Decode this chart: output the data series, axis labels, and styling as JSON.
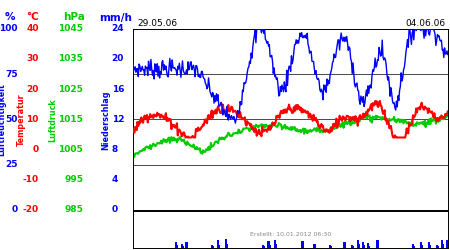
{
  "title_left": "29.05.06",
  "title_right": "04.06.06",
  "footer": "Erstellt: 10.01.2012 06:30",
  "ylabel_blue": "Luftfeuchtigkeit",
  "ylabel_red": "Temperatur",
  "ylabel_green": "Luftdruck",
  "ylabel_navy": "Niederschlag",
  "unit_blue": "%",
  "unit_red": "°C",
  "unit_green": "hPa",
  "unit_navy": "mm/h",
  "yticks_blue": [
    0,
    25,
    50,
    75,
    100
  ],
  "yticks_red": [
    -20,
    -10,
    0,
    10,
    20,
    30,
    40
  ],
  "yticks_green": [
    985,
    995,
    1005,
    1015,
    1025,
    1035,
    1045
  ],
  "yticks_navy": [
    0,
    4,
    8,
    12,
    16,
    20,
    24
  ],
  "blue_color": "#0000ff",
  "red_color": "#ff0000",
  "green_color": "#00cc00",
  "navy_color": "#0000ff",
  "bg_color": "#ffffff",
  "n_points": 400
}
